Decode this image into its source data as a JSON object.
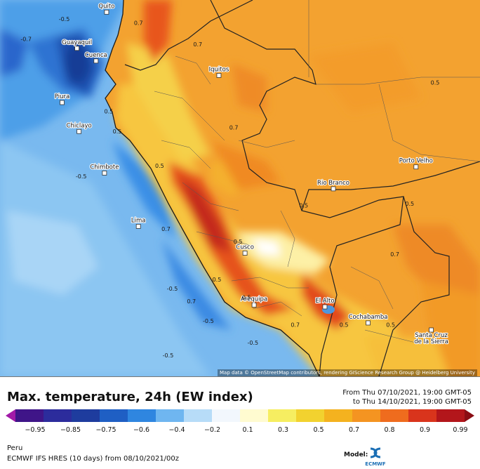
{
  "map": {
    "region": "Peru",
    "attribution": "Map data © OpenStreetMap contributors, rendering GIScience Research Group @ Heidelberg University",
    "cities": [
      {
        "name": "Quito",
        "lon": -78.5,
        "lat": -0.2
      },
      {
        "name": "Guayaquil",
        "lon": -79.9,
        "lat": -2.2
      },
      {
        "name": "Cuenca",
        "lon": -79.0,
        "lat": -2.9
      },
      {
        "name": "Piura",
        "lon": -80.6,
        "lat": -5.2
      },
      {
        "name": "Chiclayo",
        "lon": -79.8,
        "lat": -6.8
      },
      {
        "name": "Iquitos",
        "lon": -73.2,
        "lat": -3.7
      },
      {
        "name": "Chimbote",
        "lon": -78.6,
        "lat": -9.1
      },
      {
        "name": "Lima",
        "lon": -77.0,
        "lat": -12.05
      },
      {
        "name": "Rio Branco",
        "lon": -67.8,
        "lat": -9.97
      },
      {
        "name": "Porto Velho",
        "lon": -63.9,
        "lat": -8.76
      },
      {
        "name": "Cusco",
        "lon": -71.97,
        "lat": -13.53
      },
      {
        "name": "Arequipa",
        "lon": -71.54,
        "lat": -16.4
      },
      {
        "name": "El Alto",
        "lon": -68.2,
        "lat": -16.5
      },
      {
        "name": "Cochabamba",
        "lon": -66.16,
        "lat": -17.39
      },
      {
        "name": "Santa Cruz de la Sierra",
        "lon": -63.18,
        "lat": -17.78
      }
    ],
    "contour_labels": [
      {
        "text": "-0.5",
        "lon": -80.5,
        "lat": -0.7
      },
      {
        "text": "-0.7",
        "lon": -82.3,
        "lat": -1.8
      },
      {
        "text": "0.7",
        "lon": -77.0,
        "lat": -0.9
      },
      {
        "text": "0.7",
        "lon": -74.2,
        "lat": -2.1
      },
      {
        "text": "0.5",
        "lon": -63.0,
        "lat": -4.2
      },
      {
        "text": "0.5",
        "lon": -78.4,
        "lat": -5.8
      },
      {
        "text": "0.5",
        "lon": -78.0,
        "lat": -6.9
      },
      {
        "text": "0.7",
        "lon": -72.5,
        "lat": -6.7
      },
      {
        "text": "-0.5",
        "lon": -79.7,
        "lat": -9.4
      },
      {
        "text": "0.5",
        "lon": -76.0,
        "lat": -8.8
      },
      {
        "text": "0.5",
        "lon": -69.2,
        "lat": -11.0
      },
      {
        "text": "0.5",
        "lon": -64.2,
        "lat": -10.9
      },
      {
        "text": "0.7",
        "lon": -75.7,
        "lat": -12.3
      },
      {
        "text": "0.5",
        "lon": -72.3,
        "lat": -13.0
      },
      {
        "text": "0.7",
        "lon": -64.9,
        "lat": -13.7
      },
      {
        "text": "-0.5",
        "lon": -75.4,
        "lat": -15.6
      },
      {
        "text": "0.5",
        "lon": -73.3,
        "lat": -15.1
      },
      {
        "text": "0.7",
        "lon": -74.5,
        "lat": -16.3
      },
      {
        "text": "0.5",
        "lon": -71.9,
        "lat": -16.1
      },
      {
        "text": "-0.5",
        "lon": -73.7,
        "lat": -17.4
      },
      {
        "text": "0.7",
        "lon": -69.6,
        "lat": -17.6
      },
      {
        "text": "0.5",
        "lon": -67.3,
        "lat": -17.6
      },
      {
        "text": "0.5",
        "lon": -65.1,
        "lat": -17.6
      },
      {
        "text": "-0.5",
        "lon": -71.6,
        "lat": -18.6
      },
      {
        "text": "-0.5",
        "lon": -75.6,
        "lat": -19.3
      }
    ]
  },
  "header": {
    "title": "Max. temperature, 24h (EW index)",
    "period_from": "From Thu 07/10/2021, 19:00 GMT-05",
    "period_to": "to Thu 14/10/2021, 19:00 GMT-05"
  },
  "legend": {
    "ticks": [
      "−0.95",
      "−0.85",
      "−0.75",
      "−0.6",
      "−0.4",
      "−0.2",
      "0.1",
      "0.3",
      "0.5",
      "0.7",
      "0.8",
      "0.9",
      "0.99"
    ],
    "colors": [
      "#a21aa8",
      "#3f1588",
      "#2c2c9c",
      "#1e3c9e",
      "#1f5fc4",
      "#2f86e0",
      "#6fb6f0",
      "#b7dcf8",
      "#f2f7fd",
      "#fffbd0",
      "#f6ee61",
      "#f2d22f",
      "#f4b21f",
      "#f49421",
      "#ef6c1e",
      "#d9341c",
      "#b3161b",
      "#8a0d14"
    ]
  },
  "footer": {
    "region": "Peru",
    "model_line": "ECMWF IFS HRES (10 days) from 08/10/2021/00z",
    "model_tag": "Model:",
    "logo_text": "ECMWF"
  }
}
